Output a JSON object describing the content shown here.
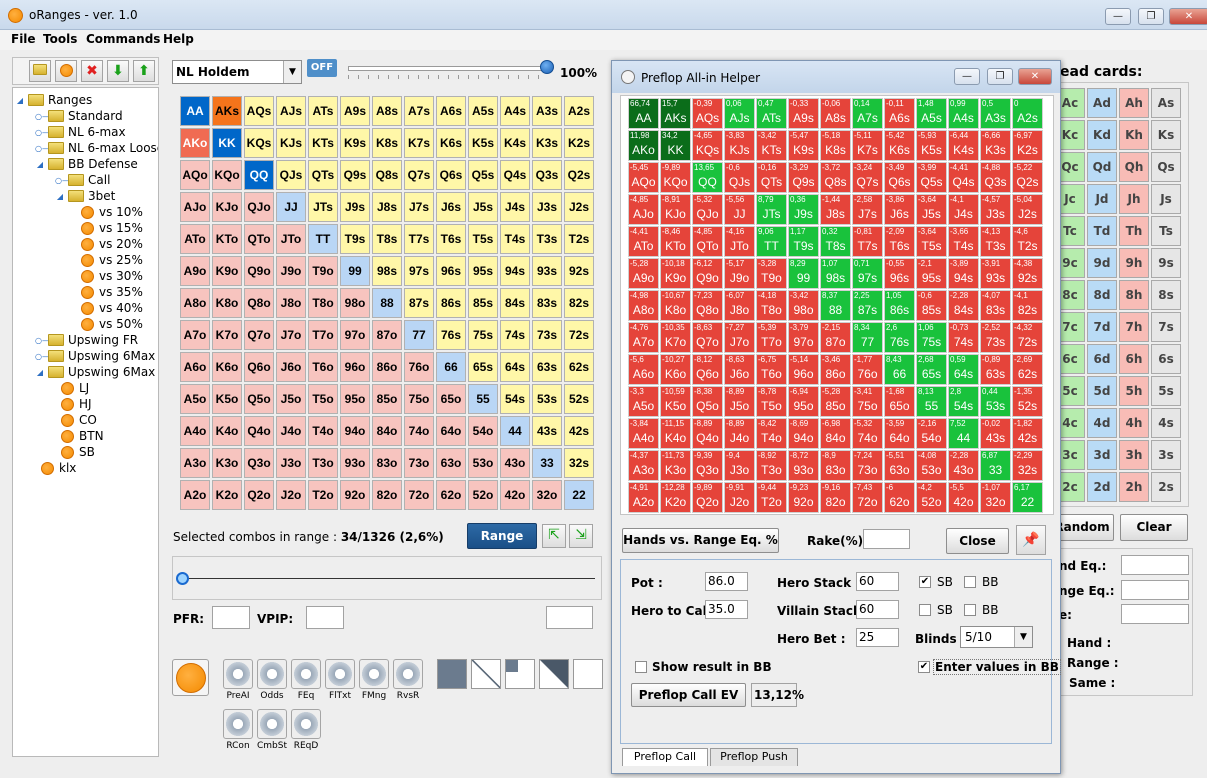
{
  "window": {
    "title": "oRanges - ver. 1.0",
    "min": "—",
    "max": "❐",
    "close": "✕"
  },
  "menu": [
    "File",
    "Tools",
    "Commands",
    "Help"
  ],
  "tree": [
    {
      "label": "Ranges",
      "type": "folder",
      "level": 0,
      "exp": "◢"
    },
    {
      "label": "Standard",
      "type": "folder",
      "level": 1,
      "exp": "○—"
    },
    {
      "label": "NL 6-max",
      "type": "folder",
      "level": 1,
      "exp": "○—"
    },
    {
      "label": "NL 6-max Loose",
      "type": "folder",
      "level": 1,
      "exp": "○—"
    },
    {
      "label": "BB Defense",
      "type": "folder",
      "level": 1,
      "exp": "◢"
    },
    {
      "label": "Call",
      "type": "folder",
      "level": 2,
      "exp": "○—"
    },
    {
      "label": "3bet",
      "type": "folder",
      "level": 2,
      "exp": "◢"
    },
    {
      "label": "vs 10%",
      "type": "range",
      "level": 3
    },
    {
      "label": "vs 15%",
      "type": "range",
      "level": 3
    },
    {
      "label": "vs 20%",
      "type": "range",
      "level": 3
    },
    {
      "label": "vs 25%",
      "type": "range",
      "level": 3
    },
    {
      "label": "vs 30%",
      "type": "range",
      "level": 3
    },
    {
      "label": "vs 35%",
      "type": "range",
      "level": 3
    },
    {
      "label": "vs 40%",
      "type": "range",
      "level": 3
    },
    {
      "label": "vs 50%",
      "type": "range",
      "level": 3
    },
    {
      "label": "Upswing FR",
      "type": "folder",
      "level": 1,
      "exp": "○—"
    },
    {
      "label": "Upswing 6Max Tight",
      "type": "folder",
      "level": 1,
      "exp": "○—"
    },
    {
      "label": "Upswing 6Max",
      "type": "folder",
      "level": 1,
      "exp": "◢"
    },
    {
      "label": "LJ",
      "type": "range",
      "level": 2
    },
    {
      "label": "HJ",
      "type": "range",
      "level": 2
    },
    {
      "label": "CO",
      "type": "range",
      "level": 2
    },
    {
      "label": "BTN",
      "type": "range",
      "level": 2
    },
    {
      "label": "SB",
      "type": "range",
      "level": 2
    },
    {
      "label": "klx",
      "type": "range",
      "level": 1
    }
  ],
  "game_select": "NL Holdem",
  "off_toggle": "OFF",
  "slider_pct": "100%",
  "slider_value": 1.0,
  "ranks": [
    "A",
    "K",
    "Q",
    "J",
    "T",
    "9",
    "8",
    "7",
    "6",
    "5",
    "4",
    "3",
    "2"
  ],
  "selected_hands": {
    "AA": "sel-b",
    "AKs": "sel-o",
    "AKo": "sel-r",
    "KK": "sel-b",
    "QQ": "sel-b"
  },
  "selected_combos_label": "Selected combos in range :",
  "selected_combos_value": "34/1326 (2,6%)",
  "range_button": "Range",
  "pfr_label": "PFR:",
  "vpip_label": "VPIP:",
  "tools": [
    "PreAI",
    "Odds",
    "FEq",
    "FlTxt",
    "FMng",
    "RvsR",
    "RCon",
    "CmbSt",
    "REqD"
  ],
  "dead_cards_title": "ead cards:",
  "dead_cards": [
    [
      "Ac",
      "Ad",
      "Ah",
      "As"
    ],
    [
      "Kc",
      "Kd",
      "Kh",
      "Ks"
    ],
    [
      "Qc",
      "Qd",
      "Qh",
      "Qs"
    ],
    [
      "Jc",
      "Jd",
      "Jh",
      "Js"
    ],
    [
      "Tc",
      "Td",
      "Th",
      "Ts"
    ],
    [
      "9c",
      "9d",
      "9h",
      "9s"
    ],
    [
      "8c",
      "8d",
      "8h",
      "8s"
    ],
    [
      "7c",
      "7d",
      "7h",
      "7s"
    ],
    [
      "6c",
      "6d",
      "6h",
      "6s"
    ],
    [
      "5c",
      "5d",
      "5h",
      "5s"
    ],
    [
      "4c",
      "4d",
      "4h",
      "4s"
    ],
    [
      "3c",
      "3d",
      "3h",
      "3s"
    ],
    [
      "2c",
      "2d",
      "2h",
      "2s"
    ]
  ],
  "suit_colors": {
    "c": "#b6ecad",
    "d": "#b9dbf6",
    "h": "#f8bcb6",
    "s": "#e6e6e6"
  },
  "random_button": "Random",
  "clear_button": "Clear",
  "right_labels": [
    "nd Eq.:",
    "nge Eq.:",
    "e:"
  ],
  "right_labels2": [
    "Hand  :",
    "Range :",
    "Same :"
  ],
  "dialog": {
    "title": "Preflop All-in Helper",
    "grid_ev": [
      [
        "66,74",
        "15,7",
        "-0,39",
        "0,06",
        "0,47",
        "-0,33",
        "-0,06",
        "0,14",
        "-0,11",
        "1,48",
        "0,99",
        "0,5",
        "0"
      ],
      [
        "11,98",
        "34,2",
        "-4,65",
        "-3,83",
        "-3,42",
        "-5,47",
        "-5,18",
        "-5,11",
        "-5,42",
        "-5,93",
        "-6,44",
        "-6,66",
        "-6,97"
      ],
      [
        "-5,45",
        "-9,89",
        "13,65",
        "-0,6",
        "-0,16",
        "-3,29",
        "-3,72",
        "-3,24",
        "-3,49",
        "-3,99",
        "-4,41",
        "-4,88",
        "-5,22"
      ],
      [
        "-4,85",
        "-8,91",
        "-5,32",
        "-5,56",
        "8,79",
        "0,36",
        "-1,44",
        "-2,58",
        "-3,86",
        "-3,64",
        "-4,1",
        "-4,57",
        "-5,04"
      ],
      [
        "-4,41",
        "-8,46",
        "-4,85",
        "-4,16",
        "9,06",
        "1,17",
        "0,32",
        "-0,81",
        "-2,09",
        "-3,64",
        "-3,66",
        "-4,13",
        "-4,6"
      ],
      [
        "-5,28",
        "-10,18",
        "-6,12",
        "-5,17",
        "-3,28",
        "8,29",
        "1,07",
        "0,71",
        "-0,55",
        "-2,1",
        "-3,89",
        "-3,91",
        "-4,38"
      ],
      [
        "-4,98",
        "-10,67",
        "-7,23",
        "-6,07",
        "-4,18",
        "-3,42",
        "8,37",
        "2,25",
        "1,05",
        "-0,6",
        "-2,28",
        "-4,07",
        "-4,1"
      ],
      [
        "-4,76",
        "-10,35",
        "-8,63",
        "-7,27",
        "-5,39",
        "-3,79",
        "-2,15",
        "8,34",
        "2,6",
        "1,06",
        "-0,73",
        "-2,52",
        "-4,32"
      ],
      [
        "-5,6",
        "-10,27",
        "-8,12",
        "-8,63",
        "-6,75",
        "-5,14",
        "-3,46",
        "-1,77",
        "8,43",
        "2,68",
        "0,59",
        "-0,89",
        "-2,69"
      ],
      [
        "-3,3",
        "-10,59",
        "-8,38",
        "-8,89",
        "-8,78",
        "-6,94",
        "-5,28",
        "-3,41",
        "-1,68",
        "8,13",
        "2,8",
        "0,44",
        "-1,35"
      ],
      [
        "-3,84",
        "-11,15",
        "-8,89",
        "-8,89",
        "-8,42",
        "-8,69",
        "-6,98",
        "-5,32",
        "-3,59",
        "-2,16",
        "7,52",
        "-0,02",
        "-1,82"
      ],
      [
        "-4,37",
        "-11,73",
        "-9,39",
        "-9,4",
        "-8,92",
        "-8,72",
        "-8,9",
        "-7,24",
        "-5,51",
        "-4,08",
        "-2,28",
        "6,87",
        "-2,29"
      ],
      [
        "-4,91",
        "-12,28",
        "-9,89",
        "-9,91",
        "-9,44",
        "-9,23",
        "-9,16",
        "-7,43",
        "-6",
        "-4,2",
        "-5,5",
        "-1,07",
        "6,17"
      ]
    ],
    "hands_vs_range_button": "Hands vs. Range Eq. %",
    "rake_label": "Rake(%) :",
    "close_button": "Close",
    "pot_label": "Pot :",
    "pot_value": "86.0",
    "hero_to_call_label": "Hero to Call :",
    "hero_to_call_value": "35.0",
    "hero_stack_label": "Hero Stack :",
    "hero_stack_value": "60",
    "villain_stack_label": "Villain Stack :",
    "villain_stack_value": "60",
    "hero_bet_label": "Hero Bet :",
    "hero_bet_value": "25",
    "blinds_label": "Blinds :",
    "blinds_value": "5/10",
    "sb_label": "SB",
    "bb_label": "BB",
    "show_bb_label": "Show result in BB",
    "enter_bb_label": "Enter values in BB",
    "call_ev_button": "Preflop Call EV",
    "call_ev_result": "13,12%",
    "tabs": [
      "Preflop Call",
      "Preflop Push"
    ]
  }
}
